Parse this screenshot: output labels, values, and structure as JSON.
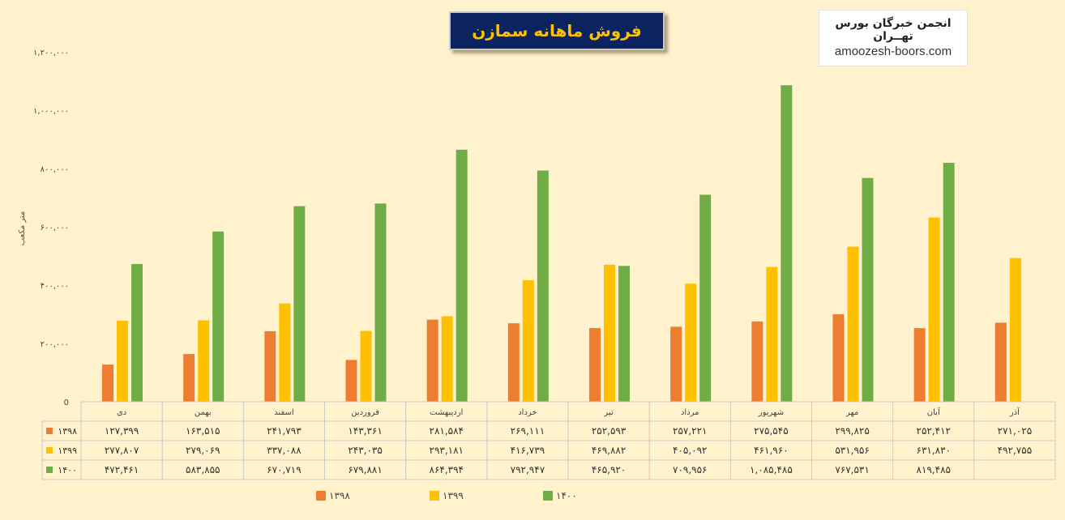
{
  "header": {
    "title": "فروش ماهانه سمازن",
    "brand_name": "انجمن خبرگان بورس تهــران",
    "brand_url": "amoozesh-boors.com"
  },
  "chart_data": {
    "type": "bar",
    "title": "فروش ماهانه سمازن",
    "ylabel": "متر مکعب",
    "ylim": [
      0,
      1200000
    ],
    "yticks": [
      0,
      200000,
      400000,
      600000,
      800000,
      1000000,
      1200000
    ],
    "ytick_labels": [
      "0",
      "۲۰۰,۰۰۰",
      "۴۰۰,۰۰۰",
      "۶۰۰,۰۰۰",
      "۸۰۰,۰۰۰",
      "۱,۰۰۰,۰۰۰",
      "۱,۲۰۰,۰۰۰"
    ],
    "categories": [
      "دی",
      "بهمن",
      "اسفند",
      "فروردین",
      "اردیبهشت",
      "خرداد",
      "تیر",
      "مرداد",
      "شهریور",
      "مهر",
      "آبان",
      "آذر"
    ],
    "series": [
      {
        "name": "۱۳۹۸",
        "color": "#ed7d31",
        "values": [
          127399,
          163515,
          241793,
          143361,
          281584,
          269111,
          252593,
          257221,
          275545,
          299825,
          252412,
          271025
        ],
        "labels": [
          "۱۲۷,۳۹۹",
          "۱۶۳,۵۱۵",
          "۲۴۱,۷۹۳",
          "۱۴۳,۳۶۱",
          "۲۸۱,۵۸۴",
          "۲۶۹,۱۱۱",
          "۲۵۲,۵۹۳",
          "۲۵۷,۲۲۱",
          "۲۷۵,۵۴۵",
          "۲۹۹,۸۲۵",
          "۲۵۲,۴۱۲",
          "۲۷۱,۰۲۵"
        ]
      },
      {
        "name": "۱۳۹۹",
        "color": "#ffc000",
        "values": [
          277807,
          279069,
          337088,
          243035,
          293181,
          416739,
          469882,
          405092,
          461960,
          531956,
          631830,
          492755
        ],
        "labels": [
          "۲۷۷,۸۰۷",
          "۲۷۹,۰۶۹",
          "۳۳۷,۰۸۸",
          "۲۴۳,۰۳۵",
          "۲۹۳,۱۸۱",
          "۴۱۶,۷۳۹",
          "۴۶۹,۸۸۲",
          "۴۰۵,۰۹۲",
          "۴۶۱,۹۶۰",
          "۵۳۱,۹۵۶",
          "۶۳۱,۸۳۰",
          "۴۹۲,۷۵۵"
        ]
      },
      {
        "name": "۱۴۰۰",
        "color": "#70ad47",
        "values": [
          472461,
          583855,
          670719,
          679881,
          864394,
          792947,
          465920,
          709956,
          1085485,
          767531,
          819485,
          null
        ],
        "labels": [
          "۴۷۲,۴۶۱",
          "۵۸۳,۸۵۵",
          "۶۷۰,۷۱۹",
          "۶۷۹,۸۸۱",
          "۸۶۴,۳۹۴",
          "۷۹۲,۹۴۷",
          "۴۶۵,۹۲۰",
          "۷۰۹,۹۵۶",
          "۱,۰۸۵,۴۸۵",
          "۷۶۷,۵۳۱",
          "۸۱۹,۴۸۵",
          ""
        ]
      }
    ],
    "legend": "bottom",
    "data_table": true
  }
}
